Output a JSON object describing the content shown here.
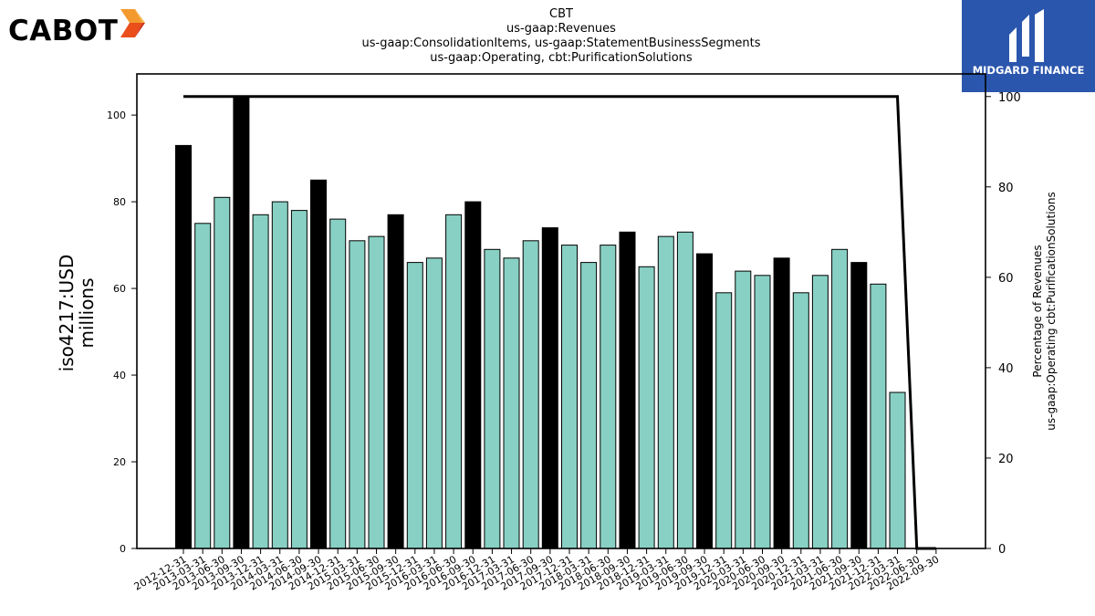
{
  "brand": {
    "name": "CABOT"
  },
  "publisher": {
    "name": "MIDGARD FINANCE"
  },
  "chart_data": {
    "type": "bar",
    "title_lines": [
      "CBT",
      "us-gaap:Revenues",
      "us-gaap:ConsolidationItems, us-gaap:StatementBusinessSegments",
      "us-gaap:Operating, cbt:PurificationSolutions"
    ],
    "ylabel": "iso4217:USD\nmillions",
    "y2label": "Percentage of Revenues\nus-gaap:Operating cbt:PurificationSolutions",
    "ylim": [
      0,
      109.5
    ],
    "y2lim": [
      0,
      105
    ],
    "yticks": [
      "0",
      "20",
      "40",
      "60",
      "80",
      "100"
    ],
    "y2ticks": [
      "0",
      "20",
      "40",
      "60",
      "80",
      "100"
    ],
    "categories": [
      "2012-12-31",
      "2013-03-31",
      "2013-06-30",
      "2013-09-30",
      "2013-12-31",
      "2014-03-31",
      "2014-06-30",
      "2014-09-30",
      "2014-12-31",
      "2015-03-31",
      "2015-06-30",
      "2015-09-30",
      "2015-12-31",
      "2016-03-31",
      "2016-06-30",
      "2016-09-30",
      "2016-12-31",
      "2017-03-31",
      "2017-06-30",
      "2017-09-30",
      "2017-12-31",
      "2018-03-31",
      "2018-06-30",
      "2018-09-30",
      "2018-12-31",
      "2019-03-31",
      "2019-06-30",
      "2019-09-30",
      "2019-12-31",
      "2020-03-31",
      "2020-06-30",
      "2020-09-30",
      "2020-12-31",
      "2021-03-31",
      "2021-06-30",
      "2021-09-30",
      "2021-12-31",
      "2022-03-31",
      "2022-06-30",
      "2022-09-30"
    ],
    "series": [
      {
        "values": [
          93,
          75,
          81,
          104,
          77,
          80,
          78,
          85,
          76,
          71,
          72,
          77,
          66,
          67,
          77,
          80,
          69,
          67,
          71,
          74,
          70,
          66,
          70,
          73,
          65,
          72,
          73,
          68,
          59,
          64,
          63,
          67,
          59,
          63,
          69,
          66,
          61,
          36,
          null,
          null
        ],
        "colors": {
          "fiscal_year_end": "#000000",
          "quarter": "#88d0c4"
        },
        "fiscal_year_end_categories": [
          "2012-12-31",
          "2013-09-30",
          "2014-09-30",
          "2015-09-30",
          "2016-09-30",
          "2017-09-30",
          "2018-09-30",
          "2019-09-30",
          "2020-09-30",
          "2021-09-30"
        ]
      },
      {
        "type": "line",
        "axis": "right",
        "color": "#000000",
        "values": [
          100,
          100,
          100,
          100,
          100,
          100,
          100,
          100,
          100,
          100,
          100,
          100,
          100,
          100,
          100,
          100,
          100,
          100,
          100,
          100,
          100,
          100,
          100,
          100,
          100,
          100,
          100,
          100,
          100,
          100,
          100,
          100,
          100,
          100,
          100,
          100,
          100,
          100,
          0,
          0
        ]
      }
    ]
  }
}
